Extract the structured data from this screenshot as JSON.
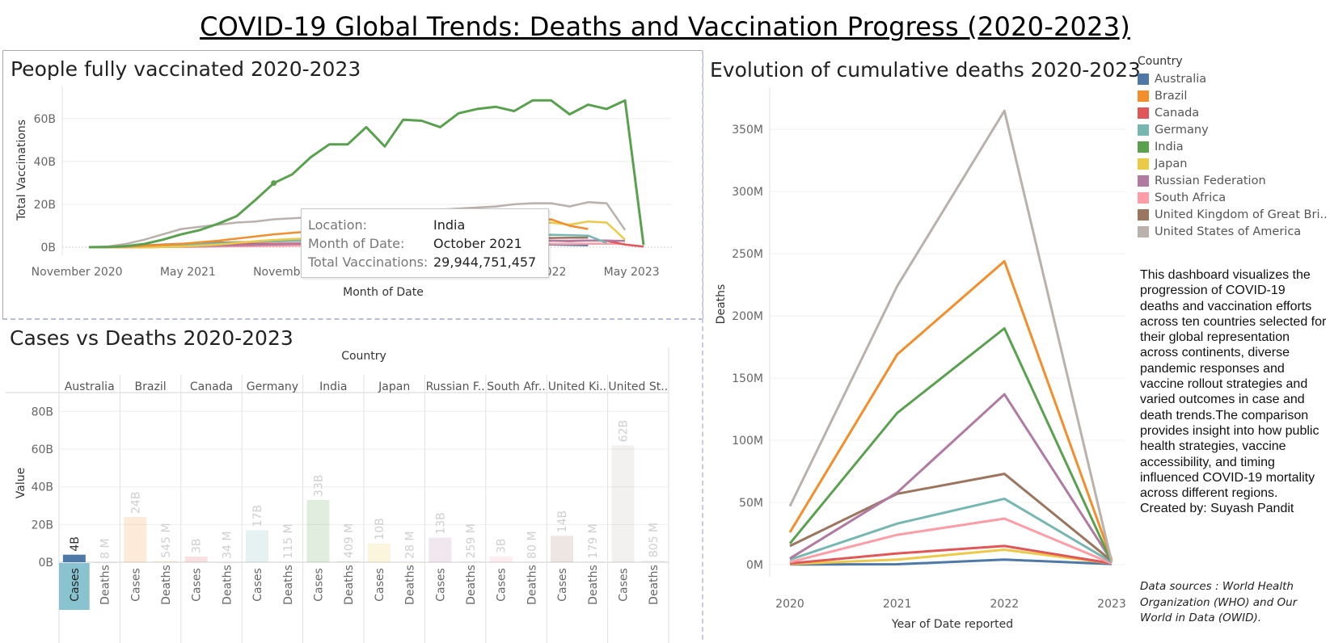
{
  "page": {
    "title": "COVID-19 Global Trends: Deaths and Vaccination Progress (2020-2023)"
  },
  "colors": {
    "Australia": "#4e79a7",
    "Brazil": "#f28e2b",
    "Canada": "#e15759",
    "Germany": "#76b7b2",
    "India": "#59a14f",
    "Japan": "#edc948",
    "Russian Federation": "#b07aa1",
    "South Africa": "#ff9da7",
    "United Kingdom": "#9c755f",
    "United States": "#bab0ac"
  },
  "legend": {
    "title": "Country",
    "items": [
      {
        "label": "Australia",
        "color": "#4e79a7"
      },
      {
        "label": "Brazil",
        "color": "#f28e2b"
      },
      {
        "label": "Canada",
        "color": "#e15759"
      },
      {
        "label": "Germany",
        "color": "#76b7b2"
      },
      {
        "label": "India",
        "color": "#59a14f"
      },
      {
        "label": "Japan",
        "color": "#edc948"
      },
      {
        "label": "Russian Federation",
        "color": "#b07aa1"
      },
      {
        "label": "South Africa",
        "color": "#ff9da7"
      },
      {
        "label": "United Kingdom of Great Bri..",
        "color": "#9c755f"
      },
      {
        "label": "United States of America",
        "color": "#bab0ac"
      }
    ]
  },
  "description": "This dashboard visualizes the progression of COVID-19 deaths and vaccination efforts across ten countries selected for their global representation across continents, diverse pandemic responses and vaccine rollout strategies and varied outcomes in case and death trends.The comparison provides insight into how public health strategies, vaccine accessibility, and timing influenced COVID-19 mortality across different regions.",
  "created_by": "Created by: Suyash Pandit",
  "sources": "Data sources : World Health Organization (WHO) and Our World in Data (OWID).",
  "tooltip": {
    "rows": [
      {
        "key": "Location:",
        "value": "India"
      },
      {
        "key": "Month of Date:",
        "value": "October 2021"
      },
      {
        "key": "Total Vaccinations:",
        "value": "29,944,751,457"
      }
    ]
  },
  "chart_data": [
    {
      "id": "vaccinations",
      "type": "line",
      "title": "People fully vaccinated 2020-2023",
      "xlabel": "Month of Date",
      "ylabel": "Total Vaccinations",
      "x_ticks": [
        "November 2020",
        "May 2021",
        "November 2021",
        "May 2022",
        "November 2022",
        "May 2023"
      ],
      "y_ticks": [
        "0B",
        "20B",
        "40B",
        "60B"
      ],
      "ylim": [
        0,
        72
      ],
      "y_unit": "billions",
      "x": [
        "2020-12",
        "2021-01",
        "2021-02",
        "2021-03",
        "2021-04",
        "2021-05",
        "2021-06",
        "2021-07",
        "2021-08",
        "2021-09",
        "2021-10",
        "2021-11",
        "2021-12",
        "2022-01",
        "2022-02",
        "2022-03",
        "2022-04",
        "2022-05",
        "2022-06",
        "2022-07",
        "2022-08",
        "2022-09",
        "2022-10",
        "2022-11",
        "2022-12",
        "2023-01",
        "2023-02",
        "2023-03",
        "2023-04",
        "2023-05",
        "2023-06"
      ],
      "series": [
        {
          "name": "India",
          "values": [
            0,
            0.1,
            0.5,
            1.5,
            3.5,
            6,
            8,
            11,
            14.5,
            22,
            29.9,
            34,
            42,
            48,
            48,
            56,
            47,
            59.5,
            59,
            56,
            62.5,
            64.5,
            65.5,
            63.5,
            68.5,
            68.5,
            62,
            66.5,
            64.5,
            68.5,
            1
          ]
        },
        {
          "name": "United States of America",
          "values": [
            0,
            0.3,
            1.5,
            3.5,
            6,
            8.5,
            9.5,
            10.5,
            11.5,
            12,
            13,
            13.5,
            14,
            14.5,
            15,
            15.5,
            16,
            16.5,
            17,
            17.5,
            18,
            18.5,
            19,
            20,
            20.5,
            20.5,
            19,
            21,
            20.5,
            8,
            null
          ]
        },
        {
          "name": "Brazil",
          "values": [
            0,
            0,
            0.2,
            0.6,
            1,
            1.5,
            2.3,
            3,
            4,
            5,
            6,
            6.7,
            7.4,
            8,
            8.6,
            9.2,
            9.7,
            10.2,
            10.5,
            10.8,
            11,
            11.5,
            12,
            11,
            12,
            13,
            10,
            8.5,
            null,
            null,
            null
          ]
        },
        {
          "name": "Japan",
          "values": [
            0,
            0,
            0,
            0,
            0.1,
            0.3,
            0.7,
            1.2,
            2,
            2.8,
            3.4,
            3.8,
            4.2,
            4.6,
            5,
            5.4,
            5.8,
            6.3,
            6.8,
            7.3,
            8,
            8.6,
            9.2,
            9.8,
            10.5,
            11.5,
            10.5,
            12,
            11.5,
            3.5,
            null
          ]
        },
        {
          "name": "Germany",
          "values": [
            0,
            0,
            0.1,
            0.3,
            0.6,
            1,
            1.4,
            1.8,
            2.2,
            2.5,
            2.8,
            3,
            3.2,
            3.4,
            3.6,
            3.8,
            4,
            4.2,
            4.5,
            4.8,
            5,
            5.2,
            5.3,
            5.5,
            5.7,
            5.8,
            5.6,
            5.4,
            2,
            null,
            null
          ]
        },
        {
          "name": "Russian Federation",
          "values": [
            0,
            0,
            0,
            0.1,
            0.2,
            0.3,
            0.5,
            0.7,
            0.9,
            1.1,
            1.3,
            1.5,
            1.7,
            1.9,
            2,
            2.1,
            2.2,
            2.3,
            2.4,
            2.5,
            2.6,
            2.7,
            2.8,
            2.9,
            3,
            3,
            3,
            3.1,
            3.1,
            2.9,
            null
          ]
        },
        {
          "name": "United Kingdom of Great Bri..",
          "values": [
            0,
            0.1,
            0.4,
            0.8,
            1.2,
            1.6,
            1.9,
            2.1,
            2.3,
            2.5,
            2.7,
            2.9,
            3.1,
            3.2,
            3.3,
            3.4,
            3.5,
            3.6,
            3.7,
            3.8,
            3.9,
            4,
            4.1,
            4.2,
            4.3,
            4.3,
            4.4,
            4.4,
            null,
            null,
            null
          ]
        },
        {
          "name": "Canada",
          "values": [
            0,
            0,
            0.1,
            0.2,
            0.4,
            0.6,
            0.9,
            1.1,
            1.3,
            1.5,
            1.6,
            1.7,
            1.8,
            1.9,
            2,
            2.1,
            2.2,
            2.3,
            2.4,
            2.5,
            2.6,
            2.7,
            2.8,
            2.9,
            3,
            3,
            2.8,
            3.1,
            3,
            1.2,
            0.3
          ]
        },
        {
          "name": "South Africa",
          "values": [
            0,
            0,
            0,
            0,
            0.1,
            0.1,
            0.2,
            0.3,
            0.4,
            0.5,
            0.6,
            0.7,
            0.8,
            0.9,
            1,
            1.1,
            1.1,
            1.2,
            1.2,
            1.3,
            1.3,
            1.4,
            1.4,
            1.5,
            1.5,
            1.5,
            1.5,
            1.6,
            1.6,
            1.5,
            null
          ]
        },
        {
          "name": "Australia",
          "values": [
            0,
            0,
            0,
            0,
            0.1,
            0.2,
            0.3,
            0.5,
            0.7,
            0.9,
            1.1,
            1.3,
            1.5,
            1.6,
            1.7,
            1.8,
            1.9,
            2,
            2,
            2,
            2,
            2,
            2,
            2,
            1.5,
            1.2,
            1,
            0.9,
            null,
            null,
            null
          ]
        }
      ],
      "tooltip_point": {
        "series": "India",
        "x": "2021-10",
        "y": 29.944751457
      }
    },
    {
      "id": "cases-deaths",
      "type": "bar",
      "title": "Cases vs Deaths 2020-2023",
      "header": "Country",
      "ylabel": "Value",
      "y_ticks": [
        "0B",
        "20B",
        "40B",
        "60B",
        "80B"
      ],
      "ylim": [
        0,
        84
      ],
      "y_unit": "billions",
      "measures": [
        "Cases",
        "Deaths"
      ],
      "highlight": {
        "country": "Australia",
        "measure": "Cases"
      },
      "countries": [
        {
          "name": "Australia",
          "cases": 4,
          "deaths": 0.008,
          "cases_label": "4B",
          "deaths_label": "8 M"
        },
        {
          "name": "Brazil",
          "cases": 24,
          "deaths": 0.545,
          "cases_label": "24B",
          "deaths_label": "545 M"
        },
        {
          "name": "Canada",
          "cases": 3,
          "deaths": 0.034,
          "cases_label": "3B",
          "deaths_label": "34 M"
        },
        {
          "name": "Germany",
          "cases": 17,
          "deaths": 0.115,
          "cases_label": "17B",
          "deaths_label": "115 M"
        },
        {
          "name": "India",
          "cases": 33,
          "deaths": 0.409,
          "cases_label": "33B",
          "deaths_label": "409 M"
        },
        {
          "name": "Japan",
          "cases": 10,
          "deaths": 0.028,
          "cases_label": "10B",
          "deaths_label": "28 M"
        },
        {
          "name": "Russian F..",
          "cases": 13,
          "deaths": 0.259,
          "cases_label": "13B",
          "deaths_label": "259 M"
        },
        {
          "name": "South Afr..",
          "cases": 3,
          "deaths": 0.08,
          "cases_label": "3B",
          "deaths_label": "80 M"
        },
        {
          "name": "United Ki..",
          "cases": 14,
          "deaths": 0.179,
          "cases_label": "14B",
          "deaths_label": "179 M"
        },
        {
          "name": "United St..",
          "cases": 62,
          "deaths": 0.805,
          "cases_label": "62B",
          "deaths_label": "805 M"
        }
      ]
    },
    {
      "id": "deaths",
      "type": "line",
      "title": "Evolution of cumulative deaths 2020-2023",
      "xlabel": "Year of Date reported",
      "ylabel": "Deaths",
      "x": [
        "2020",
        "2021",
        "2022",
        "2023"
      ],
      "y_ticks": [
        "0M",
        "50M",
        "100M",
        "150M",
        "200M",
        "250M",
        "300M",
        "350M"
      ],
      "ylim": [
        0,
        380
      ],
      "y_unit": "millions",
      "series": [
        {
          "name": "United States of America",
          "values": [
            47,
            224,
            365,
            2
          ]
        },
        {
          "name": "Brazil",
          "values": [
            26,
            169,
            244,
            4
          ]
        },
        {
          "name": "India",
          "values": [
            17,
            122,
            190,
            2
          ]
        },
        {
          "name": "Russian Federation",
          "values": [
            5,
            58,
            137,
            3
          ]
        },
        {
          "name": "United Kingdom of Great Bri..",
          "values": [
            15,
            57,
            73,
            3
          ]
        },
        {
          "name": "Germany",
          "values": [
            4,
            33,
            53,
            2
          ]
        },
        {
          "name": "South Africa",
          "values": [
            2,
            24,
            37,
            1
          ]
        },
        {
          "name": "Canada",
          "values": [
            1,
            9,
            15,
            1
          ]
        },
        {
          "name": "Japan",
          "values": [
            0.5,
            4,
            12,
            1
          ]
        },
        {
          "name": "Australia",
          "values": [
            0.1,
            0.3,
            4,
            0.5
          ]
        }
      ]
    }
  ]
}
